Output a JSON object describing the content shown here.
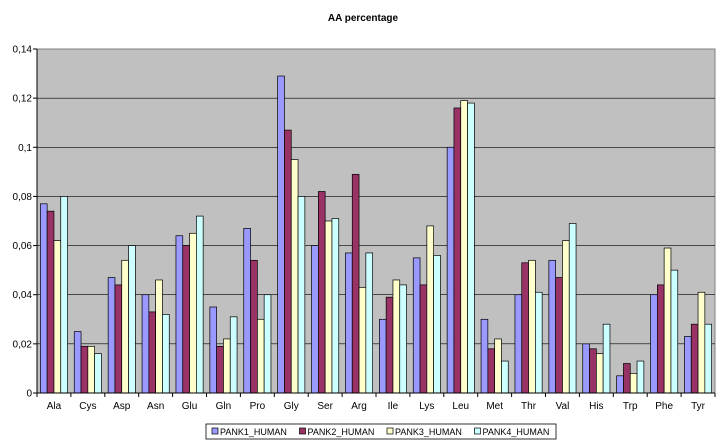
{
  "chart_data": {
    "type": "bar",
    "title": "AA percentage",
    "xlabel": "",
    "ylabel": "",
    "ylim": [
      0,
      0.14
    ],
    "yticks": [
      "0",
      "0,02",
      "0,04",
      "0,06",
      "0,08",
      "0,1",
      "0,12",
      "0,14"
    ],
    "grid": true,
    "legend_position": "bottom",
    "categories": [
      "Ala",
      "Cys",
      "Asp",
      "Asn",
      "Glu",
      "Gln",
      "Pro",
      "Gly",
      "Ser",
      "Arg",
      "Ile",
      "Lys",
      "Leu",
      "Met",
      "Thr",
      "Val",
      "His",
      "Trp",
      "Phe",
      "Tyr"
    ],
    "series": [
      {
        "name": "PANK1_HUMAN",
        "color": "#9999ff",
        "values": [
          0.077,
          0.025,
          0.047,
          0.04,
          0.064,
          0.035,
          0.067,
          0.129,
          0.06,
          0.057,
          0.03,
          0.055,
          0.1,
          0.03,
          0.04,
          0.054,
          0.02,
          0.007,
          0.04,
          0.023
        ]
      },
      {
        "name": "PANK2_HUMAN",
        "color": "#993366",
        "values": [
          0.074,
          0.019,
          0.044,
          0.033,
          0.06,
          0.019,
          0.054,
          0.107,
          0.082,
          0.089,
          0.039,
          0.044,
          0.116,
          0.018,
          0.053,
          0.047,
          0.018,
          0.012,
          0.044,
          0.028
        ]
      },
      {
        "name": "PANK3_HUMAN",
        "color": "#ffffcc",
        "values": [
          0.062,
          0.019,
          0.054,
          0.046,
          0.065,
          0.022,
          0.03,
          0.095,
          0.07,
          0.043,
          0.046,
          0.068,
          0.119,
          0.022,
          0.054,
          0.062,
          0.016,
          0.008,
          0.059,
          0.041
        ]
      },
      {
        "name": "PANK4_HUMAN",
        "color": "#ccffff",
        "values": [
          0.08,
          0.016,
          0.06,
          0.032,
          0.072,
          0.031,
          0.04,
          0.08,
          0.071,
          0.057,
          0.044,
          0.056,
          0.118,
          0.013,
          0.041,
          0.069,
          0.028,
          0.013,
          0.05,
          0.028
        ]
      }
    ],
    "plot_background": "#c0c0c0"
  }
}
